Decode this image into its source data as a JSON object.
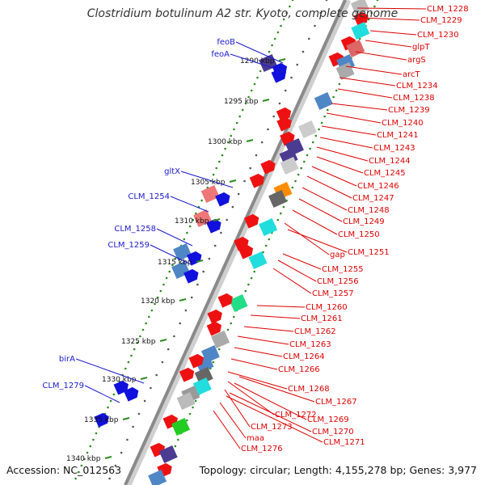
{
  "title": "Clostridium botulinum A2 str. Kyoto, complete genome",
  "footer": {
    "accession": "Accession: NC_012563",
    "topology": "Topology: circular; Length: 4,155,278 bp; Genes: 3,977"
  },
  "colors": {
    "backbone": "#8a8a8a",
    "tick_dots": "#2e8b22",
    "label_left": "#1a1acc",
    "label_right": "#dd0000",
    "gene_red": "#ee1111",
    "gene_blue": "#1111dd"
  },
  "scale_labels": [
    "1290 kbp",
    "1295 kbp",
    "1300 kbp",
    "1305 kbp",
    "1310 kbp",
    "1315 kbp",
    "1320 kbp",
    "1325 kbp",
    "1330 kbp",
    "1335 kbp",
    "1340 kbp"
  ],
  "left_genes": [
    "feoB",
    "feoA",
    "gltX",
    "CLM_1254",
    "CLM_1258",
    "CLM_1259",
    "birA",
    "CLM_1279"
  ],
  "right_genes": [
    "CLM_1228",
    "CLM_1229",
    "CLM_1230",
    "glpT",
    "argS",
    "arcT",
    "CLM_1234",
    "CLM_1238",
    "CLM_1239",
    "CLM_1240",
    "CLM_1241",
    "CLM_1243",
    "CLM_1244",
    "CLM_1245",
    "CLM_1246",
    "CLM_1247",
    "CLM_1248",
    "CLM_1249",
    "CLM_1250",
    "gap",
    "CLM_1251",
    "CLM_1255",
    "CLM_1256",
    "CLM_1257",
    "CLM_1260",
    "CLM_1261",
    "CLM_1262",
    "CLM_1263",
    "CLM_1264",
    "CLM_1266",
    "CLM_1268",
    "CLM_1267",
    "CLM_1272",
    "CLM_1269",
    "CLM_1273",
    "CLM_1270",
    "CLM_1271",
    "maa",
    "CLM_1276"
  ]
}
